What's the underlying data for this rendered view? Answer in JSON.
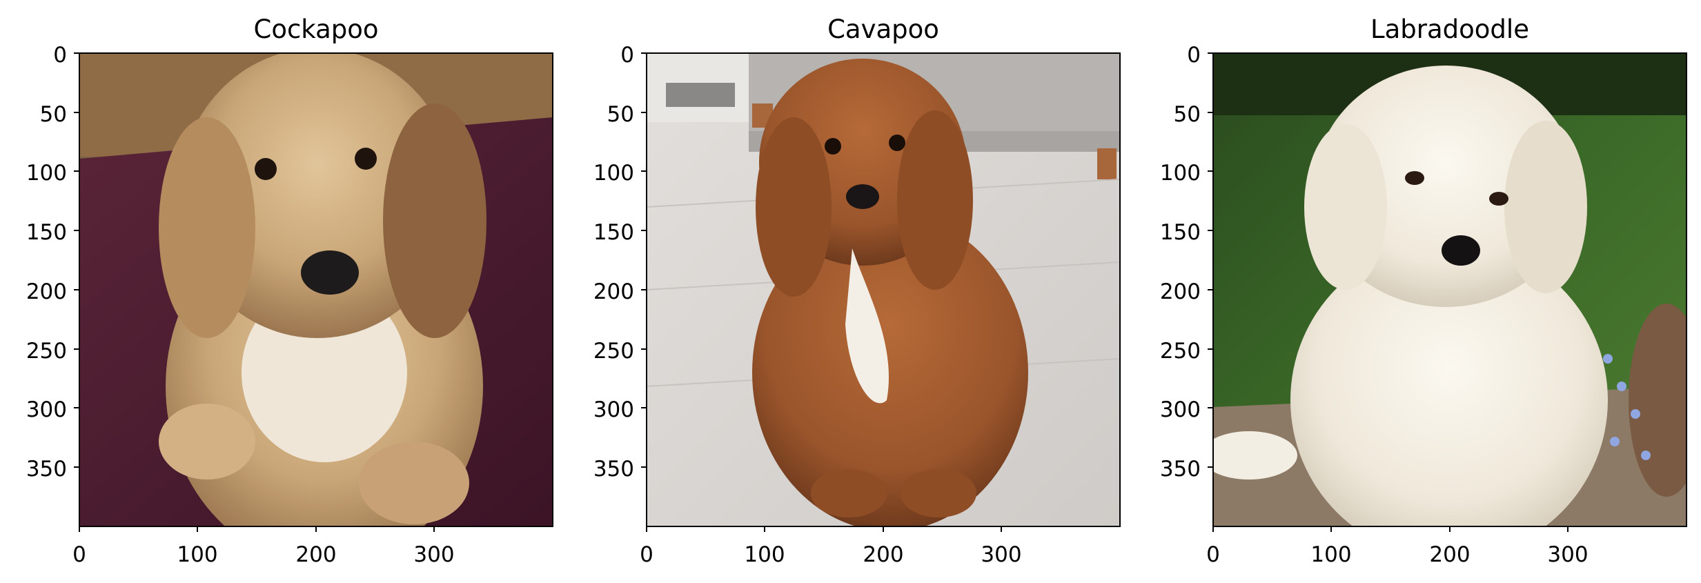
{
  "panels": [
    {
      "title": "Cockapoo",
      "subject": "cockapoo-dog-photo",
      "x_ticks": [
        "0",
        "100",
        "200",
        "300"
      ],
      "y_ticks": [
        "0",
        "50",
        "100",
        "150",
        "200",
        "250",
        "300",
        "350"
      ]
    },
    {
      "title": "Cavapoo",
      "subject": "cavapoo-dog-photo",
      "x_ticks": [
        "0",
        "100",
        "200",
        "300"
      ],
      "y_ticks": [
        "0",
        "50",
        "100",
        "150",
        "200",
        "250",
        "300",
        "350"
      ]
    },
    {
      "title": "Labradoodle",
      "subject": "labradoodle-dog-photo",
      "x_ticks": [
        "0",
        "100",
        "200",
        "300"
      ],
      "y_ticks": [
        "0",
        "50",
        "100",
        "150",
        "200",
        "250",
        "300",
        "350"
      ]
    }
  ],
  "colors": {
    "axis": "#000000",
    "background": "#ffffff",
    "cockapoo_fur": "#c9a677",
    "cockapoo_rug": "#4b1c30",
    "cavapoo_fur": "#a0592d",
    "cavapoo_floor": "#d9d6d3",
    "labradoodle_fur": "#f1ece0",
    "labradoodle_grass": "#2f5a22"
  }
}
